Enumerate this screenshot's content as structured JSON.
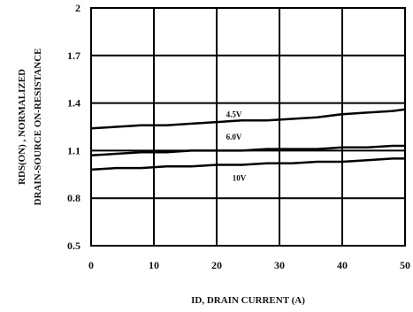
{
  "chart_data": {
    "type": "line",
    "title": "",
    "xlabel": "ID, DRAIN CURRENT (A)",
    "ylabel_line1": "RDS(ON) , NORMALIZED",
    "ylabel_line2": "DRAIN-SOURCE ON-RESISTANCE",
    "xlim": [
      0,
      50
    ],
    "ylim": [
      0.5,
      2.0
    ],
    "x_ticks": [
      0,
      10,
      20,
      30,
      40,
      50
    ],
    "x_tick_labels": [
      "0",
      "10",
      "20",
      "30",
      "40",
      "50"
    ],
    "y_ticks": [
      0.5,
      0.8,
      1.1,
      1.4,
      1.7,
      2.0
    ],
    "y_tick_labels": [
      "0.5",
      "0.8",
      "1.1",
      "1.4",
      "1.7",
      "2"
    ],
    "grid": true,
    "series": [
      {
        "name": "4.5V",
        "x": [
          0,
          4,
          8,
          12,
          16,
          20,
          24,
          28,
          32,
          36,
          40,
          44,
          48,
          50
        ],
        "y": [
          1.24,
          1.25,
          1.26,
          1.26,
          1.27,
          1.28,
          1.29,
          1.29,
          1.3,
          1.31,
          1.33,
          1.34,
          1.35,
          1.36
        ]
      },
      {
        "name": "6.0V",
        "x": [
          0,
          4,
          8,
          12,
          16,
          20,
          24,
          28,
          32,
          36,
          40,
          44,
          48,
          50
        ],
        "y": [
          1.07,
          1.08,
          1.09,
          1.09,
          1.1,
          1.1,
          1.1,
          1.11,
          1.11,
          1.11,
          1.12,
          1.12,
          1.13,
          1.13
        ]
      },
      {
        "name": "10V",
        "x": [
          0,
          4,
          8,
          12,
          16,
          20,
          24,
          28,
          32,
          36,
          40,
          44,
          48,
          50
        ],
        "y": [
          0.98,
          0.99,
          0.99,
          1.0,
          1.0,
          1.01,
          1.01,
          1.02,
          1.02,
          1.03,
          1.03,
          1.04,
          1.05,
          1.05
        ]
      }
    ],
    "annotations": [
      {
        "text": "4.5V",
        "x": 21.5,
        "y": 1.31
      },
      {
        "text": "6.0V",
        "x": 21.5,
        "y": 1.17
      },
      {
        "text": "10V",
        "x": 22.5,
        "y": 0.91
      }
    ]
  }
}
